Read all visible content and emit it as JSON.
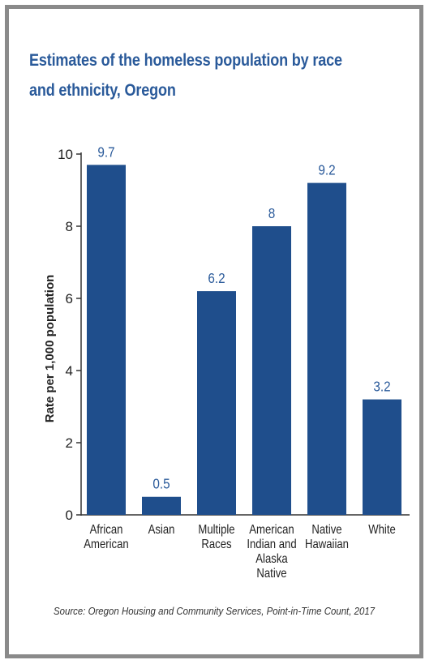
{
  "chart_data": {
    "type": "bar",
    "title": "Estimates of the homeless population by race and ethnicity, Oregon",
    "y_label": "Rate per 1,000 population",
    "categories": [
      "African\nAmerican",
      "Asian",
      "Multiple\nRaces",
      "American\nIndian and\nAlaska Native",
      "Native\nHawaiian",
      "White"
    ],
    "values": [
      9.7,
      0.5,
      6.2,
      8.0,
      9.2,
      3.2
    ],
    "color": "#1f4e8c",
    "ylim": [
      0,
      10
    ],
    "yticks": [
      0,
      2,
      4,
      6,
      8,
      10
    ],
    "grid": false,
    "source": "Source: Oregon Housing and Community Services, Point-in-Time Count, 2017"
  }
}
